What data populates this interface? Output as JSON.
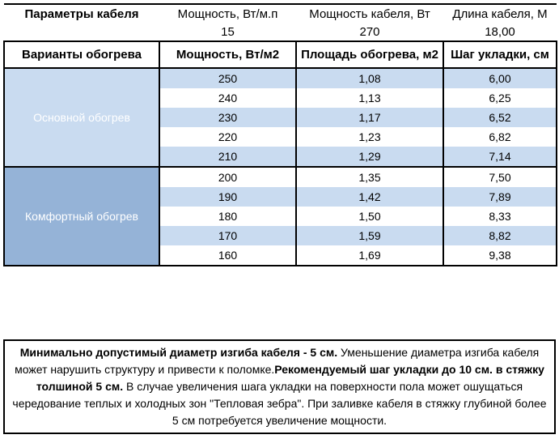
{
  "params": {
    "title": "Параметры кабеля",
    "cols": [
      {
        "label": "Мощность, Вт/м.п",
        "value": "15"
      },
      {
        "label": "Мощность кабеля, Вт",
        "value": "270"
      },
      {
        "label": "Длина кабеля, М",
        "value": "18,00"
      }
    ]
  },
  "table": {
    "headers": [
      "Варианты обогрева",
      "Мощность, Вт/м2",
      "Площадь обогрева, м2",
      "Шаг укладки, см"
    ],
    "groups": [
      {
        "label": "Основной обогрев",
        "rows": [
          [
            "250",
            "1,08",
            "6,00"
          ],
          [
            "240",
            "1,13",
            "6,25"
          ],
          [
            "230",
            "1,17",
            "6,52"
          ],
          [
            "220",
            "1,23",
            "6,82"
          ],
          [
            "210",
            "1,29",
            "7,14"
          ]
        ]
      },
      {
        "label": "Комфортный обогрев",
        "rows": [
          [
            "200",
            "1,35",
            "7,50"
          ],
          [
            "190",
            "1,42",
            "7,89"
          ],
          [
            "180",
            "1,50",
            "8,33"
          ],
          [
            "170",
            "1,59",
            "8,82"
          ],
          [
            "160",
            "1,69",
            "9,38"
          ]
        ]
      }
    ]
  },
  "note": {
    "segments": [
      {
        "bold": true,
        "text": "Минимально допустимый диаметр изгиба кабеля - 5 см."
      },
      {
        "bold": false,
        "text": " Уменьшение диаметра изгиба кабеля может нарушить структуру и привести к поломке."
      },
      {
        "bold": true,
        "text": "Рекомендуемый шаг укладки до 10 см. в стяжку толшиной 5 см."
      },
      {
        "bold": false,
        "text": " В случае увеличения шага укладки на поверхности пола может ошущаться чередование теплых и холодных зон \"Тепловая зебра\". При заливке кабеля в стяжку глубиной более 5 см потребуется увеличение мощности."
      }
    ]
  },
  "colors": {
    "group_primary": "#4f81bd",
    "group_comfort": "#95b3d7",
    "row_stripe": "#c9dbf0",
    "border": "#000000"
  }
}
